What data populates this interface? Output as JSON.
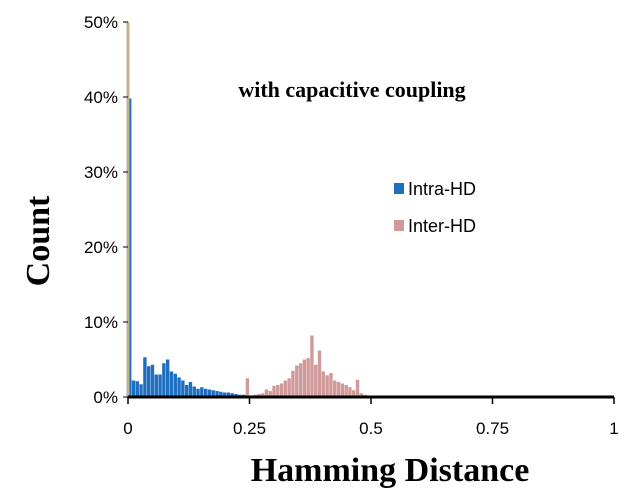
{
  "chart_data": {
    "type": "bar",
    "title": "with capacitive coupling",
    "xlabel": "Hamming Distance",
    "ylabel": "Count",
    "xlim": [
      0,
      1
    ],
    "ylim": [
      0,
      50
    ],
    "x_tick_labels": [
      "0",
      "0.25",
      "0.5",
      "0.75",
      "1"
    ],
    "y_tick_labels": [
      "0%",
      "10%",
      "20%",
      "30%",
      "40%",
      "50%"
    ],
    "bin_width": 0.0078125,
    "legend_position": "right",
    "grid": false,
    "series": [
      {
        "name": "Intra-HD",
        "color": "#1F6FC0",
        "x": [
          0,
          0.0078,
          0.0156,
          0.0234,
          0.0313,
          0.0391,
          0.0469,
          0.0547,
          0.0625,
          0.0703,
          0.0781,
          0.0859,
          0.0938,
          0.1016,
          0.1094,
          0.1172,
          0.125,
          0.1328,
          0.1406,
          0.1484,
          0.1563,
          0.1641,
          0.1719,
          0.1797,
          0.1875,
          0.1953,
          0.2031,
          0.2109,
          0.2188,
          0.2266,
          0.2344,
          0.2422,
          0.25
        ],
        "values": [
          39.8,
          2.2,
          2.1,
          1.7,
          5.3,
          4.1,
          4.3,
          3.0,
          3.0,
          4.5,
          5.0,
          3.4,
          3.1,
          2.6,
          2.2,
          1.6,
          2.0,
          1.4,
          1.1,
          1.3,
          1.1,
          1.0,
          0.9,
          0.8,
          0.7,
          0.6,
          0.6,
          0.5,
          0.4,
          0.3,
          0.3,
          0.2,
          0.1
        ]
      },
      {
        "name": "Inter-HD",
        "color": "#D19A9A",
        "x": [
          0.2422,
          0.25,
          0.2578,
          0.2656,
          0.2734,
          0.2813,
          0.2891,
          0.2969,
          0.3047,
          0.3125,
          0.3203,
          0.3281,
          0.3359,
          0.3438,
          0.3516,
          0.3594,
          0.3672,
          0.375,
          0.3828,
          0.3906,
          0.3984,
          0.4063,
          0.4141,
          0.4219,
          0.4297,
          0.4375,
          0.4453,
          0.4531,
          0.4609,
          0.4688,
          0.4766,
          0.4844,
          0.4922,
          0.5
        ],
        "values": [
          2.5,
          0.2,
          0.3,
          0.4,
          0.5,
          1.0,
          0.8,
          1.5,
          1.6,
          1.8,
          2.2,
          2.5,
          3.5,
          4.2,
          4.5,
          5.0,
          5.2,
          8.2,
          4.3,
          6.2,
          3.4,
          2.9,
          3.2,
          2.2,
          2.0,
          1.8,
          1.6,
          1.3,
          0.9,
          2.3,
          0.5,
          0.3,
          0.2,
          0.1
        ]
      }
    ]
  }
}
